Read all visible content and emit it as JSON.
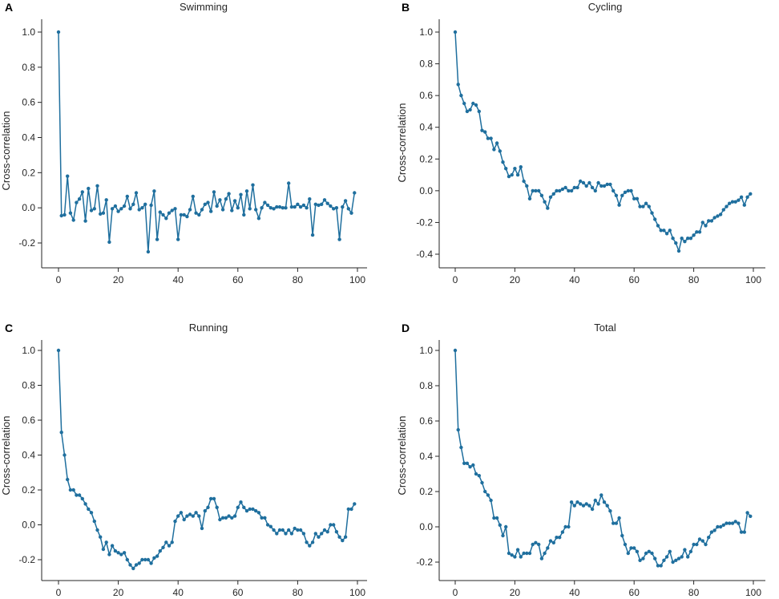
{
  "colors": {
    "line": "#1f6f9e",
    "axis": "#262626"
  },
  "chart_data": [
    {
      "type": "line",
      "panel_letter": "A",
      "title": "Swimming",
      "xlabel": "",
      "ylabel": "Cross-correlation",
      "xlim": [
        0,
        100
      ],
      "ylim": [
        -0.26,
        1.0
      ],
      "x_ticks": [
        0,
        20,
        40,
        60,
        80,
        100
      ],
      "y_ticks": [
        -0.2,
        0.0,
        0.2,
        0.4,
        0.6,
        0.8,
        1.0
      ],
      "x": [
        0,
        1,
        2,
        3,
        4,
        5,
        6,
        7,
        8,
        9,
        10,
        11,
        12,
        13,
        14,
        15,
        16,
        17,
        18,
        19,
        20,
        21,
        22,
        23,
        24,
        25,
        26,
        27,
        28,
        29,
        30,
        31,
        32,
        33,
        34,
        35,
        36,
        37,
        38,
        39,
        40,
        41,
        42,
        43,
        44,
        45,
        46,
        47,
        48,
        49,
        50,
        51,
        52,
        53,
        54,
        55,
        56,
        57,
        58,
        59,
        60,
        61,
        62,
        63,
        64,
        65,
        66,
        67,
        68,
        69,
        70,
        71,
        72,
        73,
        74,
        75,
        76,
        77,
        78,
        79,
        80,
        81,
        82,
        83,
        84,
        85,
        86,
        87,
        88,
        89,
        90,
        91,
        92,
        93,
        94,
        95,
        96,
        97,
        98,
        99
      ],
      "values": [
        1.0,
        -0.045,
        -0.04,
        0.18,
        -0.03,
        -0.07,
        0.03,
        0.05,
        0.09,
        -0.075,
        0.11,
        -0.015,
        -0.005,
        0.125,
        -0.035,
        -0.03,
        0.045,
        -0.195,
        -0.005,
        0.01,
        -0.02,
        -0.005,
        0.01,
        0.065,
        -0.005,
        0.02,
        0.085,
        -0.01,
        0.0,
        0.02,
        -0.25,
        0.015,
        0.095,
        -0.18,
        -0.025,
        -0.04,
        -0.06,
        -0.03,
        -0.015,
        -0.005,
        -0.18,
        -0.04,
        -0.04,
        -0.05,
        -0.01,
        0.065,
        -0.03,
        -0.04,
        -0.01,
        0.02,
        0.03,
        -0.02,
        0.09,
        0.01,
        0.045,
        -0.01,
        0.05,
        0.08,
        -0.015,
        0.04,
        0.0,
        0.075,
        -0.04,
        0.095,
        -0.005,
        0.13,
        -0.01,
        -0.06,
        0.0,
        0.03,
        0.015,
        0.0,
        -0.005,
        0.005,
        0.005,
        0.0,
        0.0,
        0.14,
        0.005,
        0.005,
        0.02,
        0.005,
        0.015,
        0.0,
        0.05,
        -0.155,
        0.02,
        0.015,
        0.02,
        0.045,
        0.025,
        0.01,
        -0.005,
        0.0,
        -0.18,
        0.005,
        0.04,
        -0.005,
        -0.03,
        0.085
      ]
    },
    {
      "type": "line",
      "panel_letter": "B",
      "title": "Cycling",
      "xlabel": "",
      "ylabel": "Cross-correlation",
      "xlim": [
        0,
        100
      ],
      "ylim": [
        -0.4,
        1.0
      ],
      "x_ticks": [
        0,
        20,
        40,
        60,
        80,
        100
      ],
      "y_ticks": [
        -0.4,
        -0.2,
        0.0,
        0.2,
        0.4,
        0.6,
        0.8,
        1.0
      ],
      "x": [
        0,
        1,
        2,
        3,
        4,
        5,
        6,
        7,
        8,
        9,
        10,
        11,
        12,
        13,
        14,
        15,
        16,
        17,
        18,
        19,
        20,
        21,
        22,
        23,
        24,
        25,
        26,
        27,
        28,
        29,
        30,
        31,
        32,
        33,
        34,
        35,
        36,
        37,
        38,
        39,
        40,
        41,
        42,
        43,
        44,
        45,
        46,
        47,
        48,
        49,
        50,
        51,
        52,
        53,
        54,
        55,
        56,
        57,
        58,
        59,
        60,
        61,
        62,
        63,
        64,
        65,
        66,
        67,
        68,
        69,
        70,
        71,
        72,
        73,
        74,
        75,
        76,
        77,
        78,
        79,
        80,
        81,
        82,
        83,
        84,
        85,
        86,
        87,
        88,
        89,
        90,
        91,
        92,
        93,
        94,
        95,
        96,
        97,
        98,
        99
      ],
      "values": [
        1.0,
        0.67,
        0.6,
        0.55,
        0.5,
        0.51,
        0.55,
        0.54,
        0.5,
        0.38,
        0.37,
        0.33,
        0.33,
        0.26,
        0.3,
        0.25,
        0.18,
        0.14,
        0.09,
        0.1,
        0.14,
        0.1,
        0.15,
        0.06,
        0.03,
        -0.05,
        0.0,
        0.0,
        0.0,
        -0.03,
        -0.07,
        -0.11,
        -0.04,
        -0.02,
        0.0,
        0.0,
        0.01,
        0.02,
        0.0,
        0.0,
        0.02,
        0.02,
        0.06,
        0.05,
        0.03,
        0.05,
        0.02,
        0.0,
        0.05,
        0.03,
        0.03,
        0.04,
        0.04,
        0.0,
        -0.03,
        -0.09,
        -0.03,
        -0.01,
        0.0,
        0.0,
        -0.05,
        -0.05,
        -0.1,
        -0.1,
        -0.08,
        -0.1,
        -0.14,
        -0.18,
        -0.22,
        -0.25,
        -0.25,
        -0.27,
        -0.25,
        -0.3,
        -0.33,
        -0.38,
        -0.3,
        -0.32,
        -0.3,
        -0.3,
        -0.28,
        -0.26,
        -0.26,
        -0.2,
        -0.22,
        -0.19,
        -0.19,
        -0.17,
        -0.16,
        -0.15,
        -0.12,
        -0.1,
        -0.08,
        -0.07,
        -0.07,
        -0.06,
        -0.04,
        -0.09,
        -0.04,
        -0.02
      ]
    },
    {
      "type": "line",
      "panel_letter": "C",
      "title": "Running",
      "xlabel": "",
      "ylabel": "Cross-correlation",
      "xlim": [
        0,
        100
      ],
      "ylim": [
        -0.26,
        1.0
      ],
      "x_ticks": [
        0,
        20,
        40,
        60,
        80,
        100
      ],
      "y_ticks": [
        -0.2,
        0.0,
        0.2,
        0.4,
        0.6,
        0.8,
        1.0
      ],
      "x": [
        0,
        1,
        2,
        3,
        4,
        5,
        6,
        7,
        8,
        9,
        10,
        11,
        12,
        13,
        14,
        15,
        16,
        17,
        18,
        19,
        20,
        21,
        22,
        23,
        24,
        25,
        26,
        27,
        28,
        29,
        30,
        31,
        32,
        33,
        34,
        35,
        36,
        37,
        38,
        39,
        40,
        41,
        42,
        43,
        44,
        45,
        46,
        47,
        48,
        49,
        50,
        51,
        52,
        53,
        54,
        55,
        56,
        57,
        58,
        59,
        60,
        61,
        62,
        63,
        64,
        65,
        66,
        67,
        68,
        69,
        70,
        71,
        72,
        73,
        74,
        75,
        76,
        77,
        78,
        79,
        80,
        81,
        82,
        83,
        84,
        85,
        86,
        87,
        88,
        89,
        90,
        91,
        92,
        93,
        94,
        95,
        96,
        97,
        98,
        99
      ],
      "values": [
        1.0,
        0.53,
        0.4,
        0.26,
        0.2,
        0.2,
        0.17,
        0.17,
        0.15,
        0.12,
        0.09,
        0.07,
        0.02,
        -0.03,
        -0.07,
        -0.14,
        -0.1,
        -0.17,
        -0.12,
        -0.15,
        -0.16,
        -0.17,
        -0.16,
        -0.2,
        -0.23,
        -0.25,
        -0.23,
        -0.22,
        -0.2,
        -0.2,
        -0.2,
        -0.22,
        -0.19,
        -0.18,
        -0.15,
        -0.13,
        -0.1,
        -0.12,
        -0.1,
        0.02,
        0.05,
        0.07,
        0.03,
        0.05,
        0.06,
        0.05,
        0.07,
        0.05,
        -0.02,
        0.08,
        0.1,
        0.15,
        0.15,
        0.1,
        0.03,
        0.04,
        0.04,
        0.05,
        0.04,
        0.05,
        0.1,
        0.13,
        0.1,
        0.08,
        0.09,
        0.09,
        0.08,
        0.07,
        0.04,
        0.04,
        0.0,
        -0.01,
        -0.03,
        -0.05,
        -0.03,
        -0.03,
        -0.05,
        -0.03,
        -0.05,
        -0.02,
        -0.03,
        -0.03,
        -0.05,
        -0.1,
        -0.12,
        -0.1,
        -0.05,
        -0.07,
        -0.05,
        -0.03,
        -0.04,
        0.0,
        0.0,
        -0.04,
        -0.07,
        -0.09,
        -0.07,
        0.09,
        0.09,
        0.12
      ]
    },
    {
      "type": "line",
      "panel_letter": "D",
      "title": "Total",
      "xlabel": "",
      "ylabel": "Cross-correlation",
      "xlim": [
        0,
        100
      ],
      "ylim": [
        -0.24,
        1.0
      ],
      "x_ticks": [
        0,
        20,
        40,
        60,
        80,
        100
      ],
      "y_ticks": [
        -0.2,
        0.0,
        0.2,
        0.4,
        0.6,
        0.8,
        1.0
      ],
      "x": [
        0,
        1,
        2,
        3,
        4,
        5,
        6,
        7,
        8,
        9,
        10,
        11,
        12,
        13,
        14,
        15,
        16,
        17,
        18,
        19,
        20,
        21,
        22,
        23,
        24,
        25,
        26,
        27,
        28,
        29,
        30,
        31,
        32,
        33,
        34,
        35,
        36,
        37,
        38,
        39,
        40,
        41,
        42,
        43,
        44,
        45,
        46,
        47,
        48,
        49,
        50,
        51,
        52,
        53,
        54,
        55,
        56,
        57,
        58,
        59,
        60,
        61,
        62,
        63,
        64,
        65,
        66,
        67,
        68,
        69,
        70,
        71,
        72,
        73,
        74,
        75,
        76,
        77,
        78,
        79,
        80,
        81,
        82,
        83,
        84,
        85,
        86,
        87,
        88,
        89,
        90,
        91,
        92,
        93,
        94,
        95,
        96,
        97,
        98,
        99
      ],
      "values": [
        1.0,
        0.55,
        0.45,
        0.36,
        0.36,
        0.34,
        0.35,
        0.3,
        0.29,
        0.25,
        0.2,
        0.18,
        0.15,
        0.05,
        0.05,
        0.01,
        -0.05,
        0.0,
        -0.15,
        -0.16,
        -0.17,
        -0.13,
        -0.17,
        -0.15,
        -0.15,
        -0.15,
        -0.1,
        -0.09,
        -0.1,
        -0.18,
        -0.15,
        -0.12,
        -0.08,
        -0.09,
        -0.06,
        -0.06,
        -0.03,
        0.0,
        0.0,
        0.14,
        0.12,
        0.14,
        0.13,
        0.12,
        0.13,
        0.12,
        0.1,
        0.15,
        0.13,
        0.18,
        0.14,
        0.12,
        0.09,
        0.02,
        0.02,
        0.05,
        -0.05,
        -0.1,
        -0.15,
        -0.12,
        -0.12,
        -0.14,
        -0.19,
        -0.18,
        -0.15,
        -0.14,
        -0.15,
        -0.18,
        -0.22,
        -0.22,
        -0.19,
        -0.17,
        -0.14,
        -0.2,
        -0.19,
        -0.18,
        -0.17,
        -0.13,
        -0.17,
        -0.14,
        -0.1,
        -0.1,
        -0.07,
        -0.08,
        -0.1,
        -0.06,
        -0.03,
        -0.02,
        0.0,
        0.0,
        0.01,
        0.02,
        0.02,
        0.02,
        0.03,
        0.02,
        -0.03,
        -0.03,
        0.08,
        0.06
      ]
    }
  ]
}
